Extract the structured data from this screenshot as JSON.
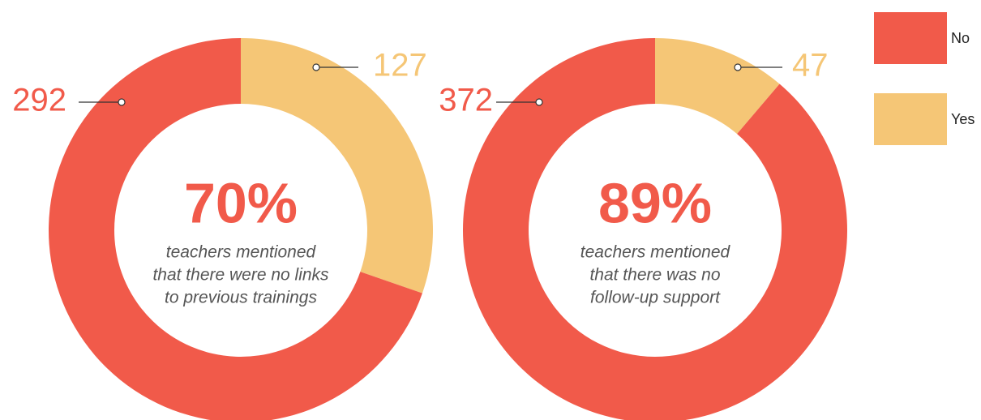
{
  "chart_data": [
    {
      "type": "pie",
      "donut": true,
      "categories": [
        "No",
        "Yes"
      ],
      "values": [
        292,
        127
      ],
      "colors": [
        "#f15a4a",
        "#f5c676"
      ],
      "center_label": "70%",
      "caption_lines": [
        "teachers mentioned",
        "that there were no links",
        "to previous trainings"
      ]
    },
    {
      "type": "pie",
      "donut": true,
      "categories": [
        "No",
        "Yes"
      ],
      "values": [
        372,
        47
      ],
      "colors": [
        "#f15a4a",
        "#f5c676"
      ],
      "center_label": "89%",
      "caption_lines": [
        "teachers mentioned",
        "that there was no",
        "follow-up support"
      ]
    }
  ]
}
